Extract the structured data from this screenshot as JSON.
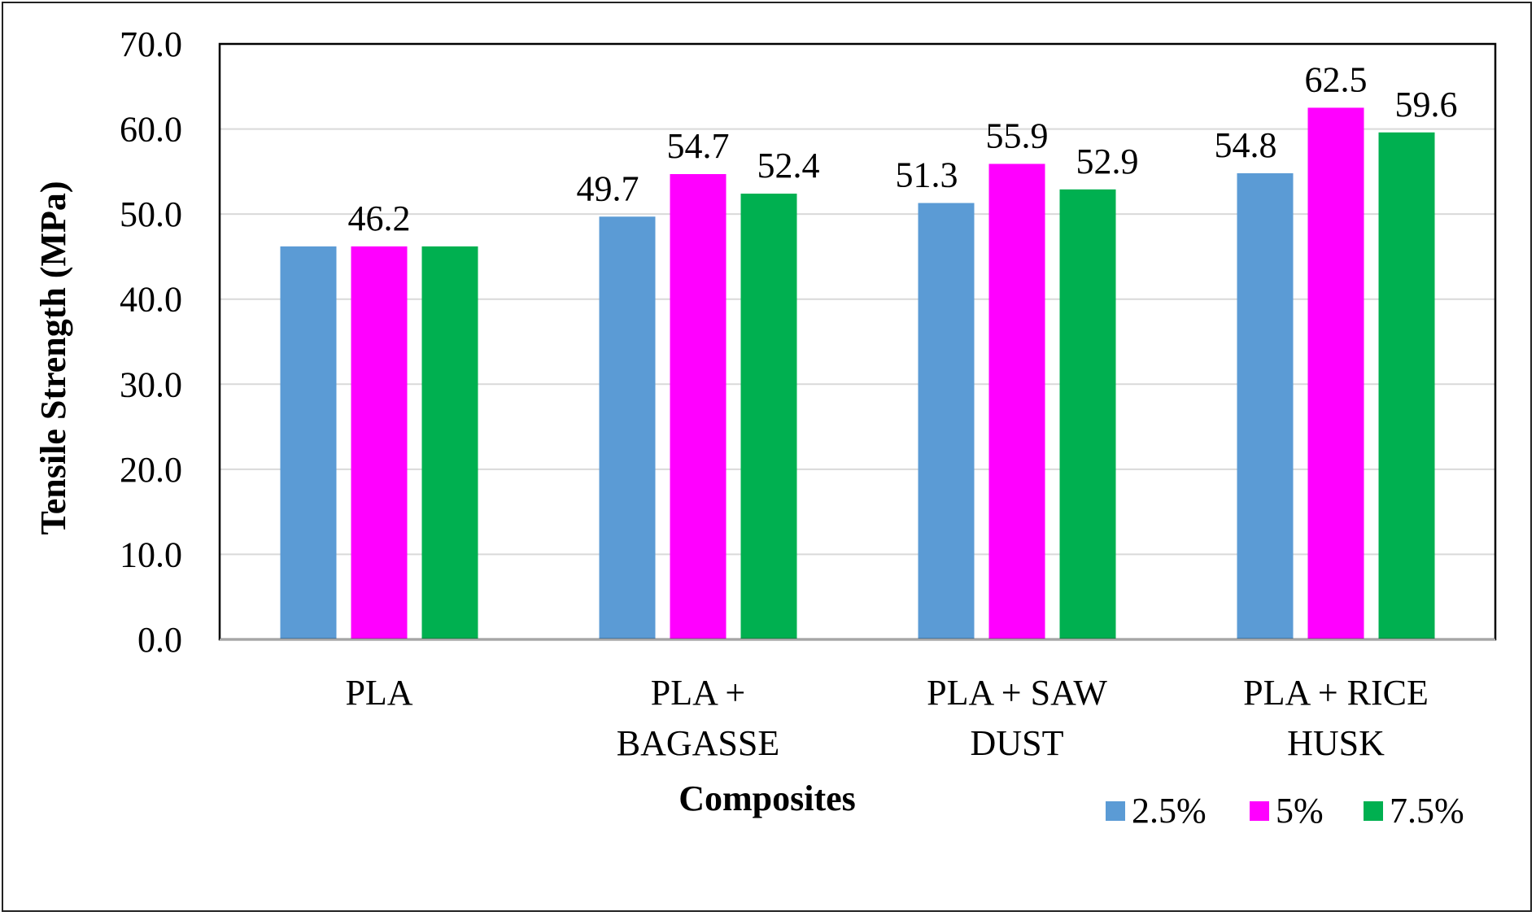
{
  "chart_data": {
    "type": "bar",
    "title": "",
    "xlabel": "Composites",
    "ylabel": "Tensile Strength (MPa)",
    "ylim": [
      0,
      70
    ],
    "ytick_step": 10,
    "ytick_labels": [
      "0.0",
      "10.0",
      "20.0",
      "30.0",
      "40.0",
      "50.0",
      "60.0",
      "70.0"
    ],
    "grid": true,
    "legend_position": "bottom-right",
    "categories": [
      [
        "PLA"
      ],
      [
        "PLA +",
        "BAGASSE"
      ],
      [
        "PLA + SAW",
        "DUST"
      ],
      [
        "PLA + RICE",
        "HUSK"
      ]
    ],
    "series": [
      {
        "name": "2.5%",
        "color": "#5b9bd5",
        "values": [
          46.2,
          49.7,
          51.3,
          54.8
        ]
      },
      {
        "name": "5%",
        "color": "#ff00ff",
        "values": [
          46.2,
          54.7,
          55.9,
          62.5
        ]
      },
      {
        "name": "7.5%",
        "color": "#00b050",
        "values": [
          46.2,
          52.4,
          52.9,
          59.6
        ]
      }
    ],
    "data_labels": [
      [
        null,
        "46.2",
        null
      ],
      [
        "49.7",
        "54.7",
        "52.4"
      ],
      [
        "51.3",
        "55.9",
        "52.9"
      ],
      [
        "54.8",
        "62.5",
        "59.6"
      ]
    ]
  }
}
